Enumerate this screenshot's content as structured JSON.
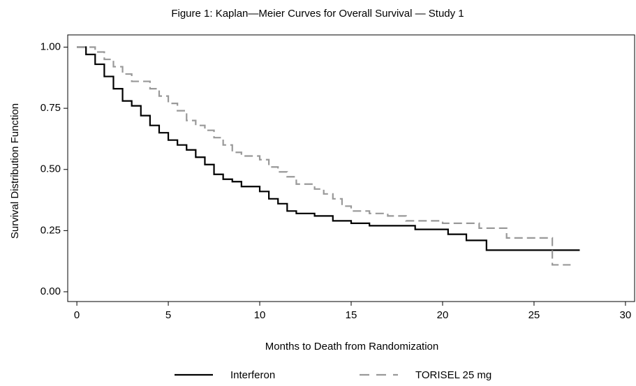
{
  "chart_data": {
    "type": "line",
    "step": "post",
    "title": "Figure 1: Kaplan—Meier Curves for Overall Survival — Study 1",
    "x_label": "Months to Death from Randomization",
    "y_label": "Survival Distribution Function",
    "xlim": [
      -0.5,
      30.5
    ],
    "ylim": [
      -0.04,
      1.05
    ],
    "xticks": [
      0,
      5,
      10,
      15,
      20,
      25,
      30
    ],
    "yticks": [
      {
        "value": 0,
        "label": "0.00"
      },
      0.25,
      {
        "value": 0.5,
        "label": "0.50"
      },
      0.75,
      {
        "value": 1,
        "label": "1.00"
      }
    ],
    "series": [
      {
        "name": "Interferon",
        "color": "#000000",
        "dash": "solid",
        "x": [
          0,
          0.5,
          1,
          1.5,
          2,
          2.5,
          3,
          3.5,
          4,
          4.5,
          5,
          5.5,
          6,
          6.5,
          7,
          7.5,
          8,
          8.5,
          9,
          10,
          10.5,
          11,
          11.5,
          12,
          13,
          14,
          15,
          16,
          18.5,
          20.3,
          21.3,
          22.4,
          27.5
        ],
        "values": [
          1.0,
          0.97,
          0.93,
          0.88,
          0.83,
          0.78,
          0.76,
          0.72,
          0.68,
          0.65,
          0.62,
          0.6,
          0.58,
          0.55,
          0.52,
          0.48,
          0.46,
          0.45,
          0.43,
          0.41,
          0.38,
          0.36,
          0.33,
          0.32,
          0.31,
          0.29,
          0.28,
          0.27,
          0.255,
          0.235,
          0.21,
          0.17,
          0.17
        ]
      },
      {
        "name": "TORISEL 25 mg",
        "color": "#999999",
        "dash": "dashed",
        "x": [
          0,
          1,
          1.5,
          2,
          2.5,
          3,
          4,
          4.5,
          5,
          5.5,
          6,
          6.5,
          7,
          7.5,
          8,
          8.5,
          9,
          10,
          10.5,
          11,
          11.5,
          12,
          13,
          13.5,
          14,
          14.5,
          15,
          16,
          17,
          18,
          20,
          22,
          23.5,
          26,
          27
        ],
        "values": [
          1.0,
          0.98,
          0.95,
          0.92,
          0.89,
          0.86,
          0.83,
          0.8,
          0.77,
          0.74,
          0.7,
          0.68,
          0.66,
          0.63,
          0.6,
          0.57,
          0.555,
          0.54,
          0.51,
          0.49,
          0.47,
          0.44,
          0.42,
          0.4,
          0.38,
          0.35,
          0.33,
          0.32,
          0.31,
          0.29,
          0.28,
          0.26,
          0.22,
          0.11,
          0.11
        ]
      }
    ]
  }
}
